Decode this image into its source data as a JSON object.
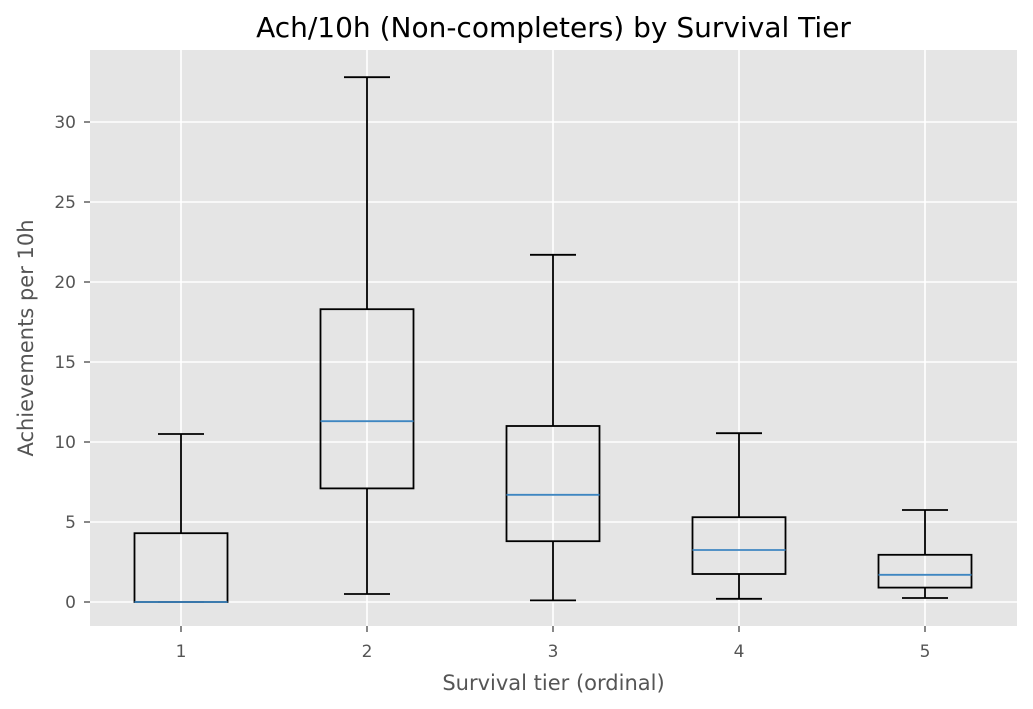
{
  "chart_data": {
    "type": "boxplot",
    "title": "Ach/10h (Non-completers) by Survival Tier",
    "xlabel": "Survival tier (ordinal)",
    "ylabel": "Achievements per 10h",
    "categories": [
      "1",
      "2",
      "3",
      "4",
      "5"
    ],
    "boxes": [
      {
        "category": "1",
        "whisker_low": 0.0,
        "q1": 0.0,
        "median": 0.0,
        "q3": 4.3,
        "whisker_high": 10.5
      },
      {
        "category": "2",
        "whisker_low": 0.5,
        "q1": 7.1,
        "median": 11.3,
        "q3": 18.3,
        "whisker_high": 32.8
      },
      {
        "category": "3",
        "whisker_low": 0.1,
        "q1": 3.8,
        "median": 6.7,
        "q3": 11.0,
        "whisker_high": 21.7
      },
      {
        "category": "4",
        "whisker_low": 0.2,
        "q1": 1.75,
        "median": 3.25,
        "q3": 5.3,
        "whisker_high": 10.55
      },
      {
        "category": "5",
        "whisker_low": 0.25,
        "q1": 0.9,
        "median": 1.7,
        "q3": 2.95,
        "whisker_high": 5.75
      }
    ],
    "y_ticks": [
      0,
      5,
      10,
      15,
      20,
      25,
      30
    ],
    "ylim": [
      -1.5,
      34.5
    ],
    "grid": true,
    "legend": "none",
    "colors": {
      "plot_background": "#e5e5e5",
      "grid": "#ffffff",
      "box_edge": "#000000",
      "median": "#3e86c1",
      "text": "#555555"
    }
  }
}
